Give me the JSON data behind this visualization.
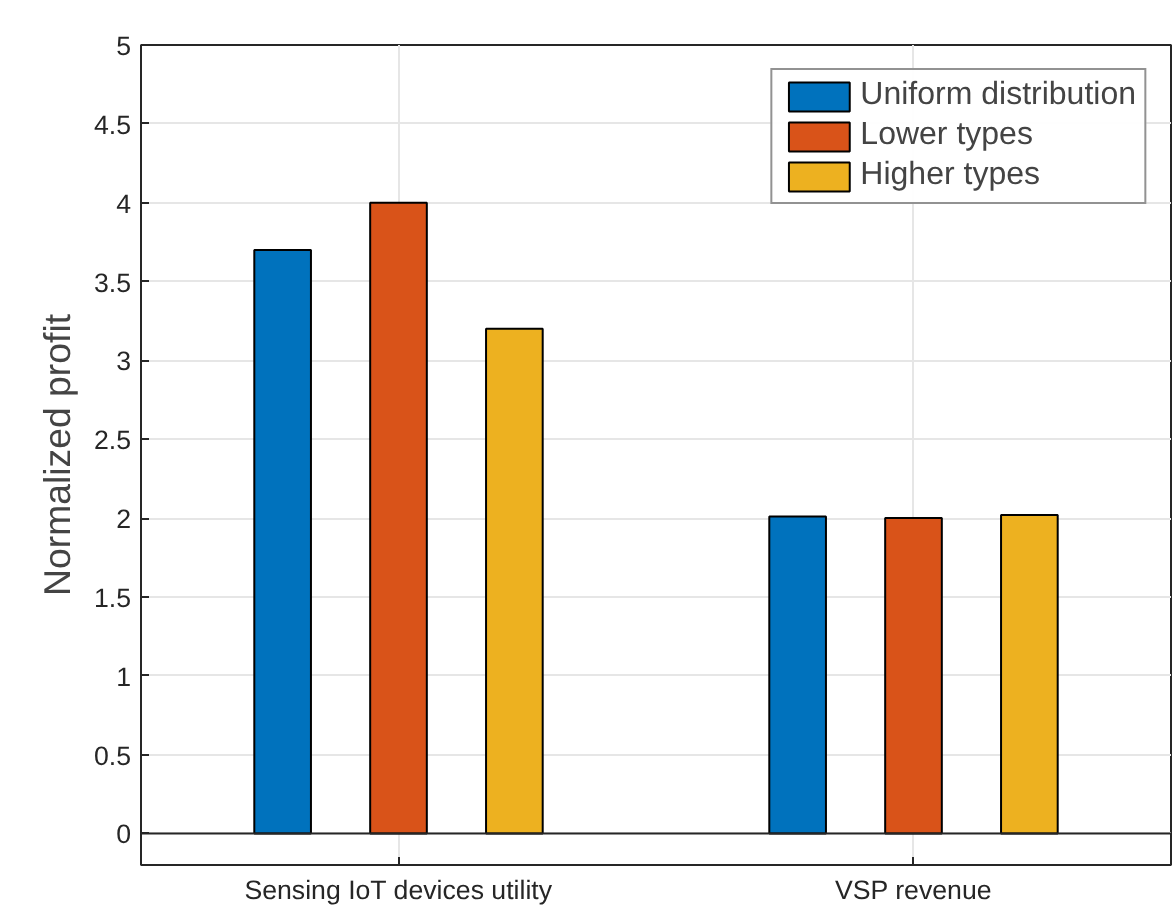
{
  "chart_data": {
    "type": "bar",
    "ylabel": "Normalized profit",
    "categories": [
      "Sensing IoT devices utility",
      "VSP revenue"
    ],
    "series": [
      {
        "name": "Uniform distribution",
        "color": "#0072bd",
        "values": [
          3.7,
          2.01
        ]
      },
      {
        "name": "Lower types",
        "color": "#d95319",
        "values": [
          4.0,
          2.0
        ]
      },
      {
        "name": "Higher types",
        "color": "#edb120",
        "values": [
          3.2,
          2.02
        ]
      }
    ],
    "ylim": [
      -0.2,
      5
    ],
    "yticks": [
      0,
      0.5,
      1,
      1.5,
      2,
      2.5,
      3,
      3.5,
      4,
      4.5,
      5
    ],
    "ref_lines": [
      {
        "axis": "y",
        "value": 0,
        "color": "#262626"
      }
    ],
    "grid": true,
    "legend": "top right"
  }
}
